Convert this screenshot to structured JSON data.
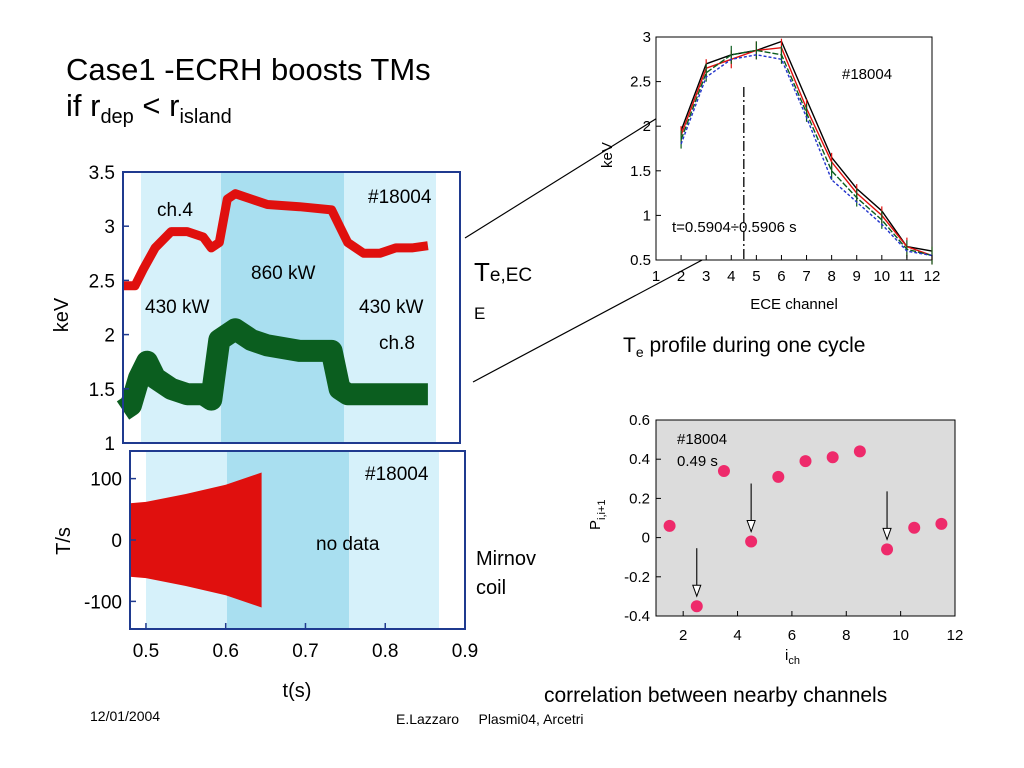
{
  "slide": {
    "title_line1": "Case1 -ECRH boosts TMs",
    "title_line2_prefix": "if r",
    "title_line2_sub1": "dep",
    "title_line2_mid": " < r",
    "title_line2_sub2": "island",
    "te_label_main": "T",
    "te_label_sub": "e,EC",
    "te_label_tail": "E",
    "mirnov_line1": "Mirnov",
    "mirnov_line2": "coil",
    "te_caption_prefix": "T",
    "te_caption_sub": "e",
    "te_caption_rest": " profile during one cycle",
    "corr_caption": "correlation between nearby channels",
    "footer_date": "12/01/2004",
    "footer_author": "E.Lazzaro     Plasmi04, Arcetri"
  },
  "colors": {
    "red": "#e0100e",
    "green": "#0b5e1f",
    "cyan_band": "#a9dff0",
    "cyan_light": "#d6f1fa",
    "pink": "#ee2a6b",
    "axis_blue": "#1f3a8f",
    "gray_bg": "#dcdcdc"
  },
  "chart_data": [
    {
      "type": "line",
      "ylabel": "keV",
      "ylim": [
        1,
        3.5
      ],
      "xlim": [
        0.48,
        0.9
      ],
      "yticks": [
        "1",
        "1.5",
        "2",
        "2.5",
        "3",
        "3.5"
      ],
      "annotation_shot": "#18004",
      "annotations": [
        "ch.4",
        "860 kW",
        "430 kW",
        "430 kW",
        "ch.8"
      ],
      "ecrh_phases": [
        {
          "from": 0.49,
          "to": 0.59,
          "power": "430 kW"
        },
        {
          "from": 0.59,
          "to": 0.745,
          "power": "860 kW"
        },
        {
          "from": 0.745,
          "to": 0.86,
          "power": "430 kW"
        }
      ],
      "series": [
        {
          "name": "ch.4",
          "color": "red",
          "x": [
            0.48,
            0.495,
            0.505,
            0.52,
            0.54,
            0.56,
            0.58,
            0.59,
            0.6,
            0.61,
            0.62,
            0.64,
            0.66,
            0.7,
            0.74,
            0.75,
            0.76,
            0.78,
            0.8,
            0.82,
            0.84,
            0.86
          ],
          "y": [
            2.45,
            2.45,
            2.6,
            2.8,
            2.95,
            2.95,
            2.9,
            2.8,
            2.85,
            3.25,
            3.3,
            3.25,
            3.2,
            3.18,
            3.15,
            3.0,
            2.85,
            2.75,
            2.75,
            2.8,
            2.8,
            2.82
          ]
        },
        {
          "name": "ch.8",
          "color": "green",
          "x": [
            0.48,
            0.49,
            0.5,
            0.51,
            0.52,
            0.54,
            0.56,
            0.58,
            0.59,
            0.6,
            0.62,
            0.64,
            0.66,
            0.7,
            0.74,
            0.75,
            0.76,
            0.78,
            0.8,
            0.82,
            0.84,
            0.86
          ],
          "y": [
            1.3,
            1.35,
            1.6,
            1.75,
            1.6,
            1.5,
            1.45,
            1.45,
            1.4,
            1.95,
            2.05,
            1.95,
            1.9,
            1.85,
            1.85,
            1.5,
            1.45,
            1.45,
            1.45,
            1.45,
            1.45,
            1.45
          ]
        }
      ]
    },
    {
      "type": "area",
      "ylabel": "T/s",
      "xlabel": "t(s)",
      "xlim": [
        0.48,
        0.9
      ],
      "ylim": [
        -145,
        145
      ],
      "xticks": [
        "0.5",
        "0.6",
        "0.7",
        "0.8",
        "0.9"
      ],
      "yticks": [
        "-100",
        "0",
        "100"
      ],
      "annotation_shot": "#18004",
      "annotation_nodata": "no data",
      "envelope": {
        "color": "red",
        "x": [
          0.48,
          0.5,
          0.55,
          0.6,
          0.645
        ],
        "y_max": [
          60,
          62,
          75,
          90,
          110
        ],
        "y_min": [
          -60,
          -62,
          -75,
          -90,
          -110
        ]
      }
    },
    {
      "type": "line",
      "xlabel": "ECE channel",
      "ylabel": "keV",
      "xlim": [
        1,
        12
      ],
      "ylim": [
        0.5,
        3
      ],
      "xticks": [
        "1",
        "2",
        "3",
        "4",
        "5",
        "6",
        "7",
        "8",
        "9",
        "10",
        "11",
        "12"
      ],
      "yticks": [
        "0.5",
        "1",
        "1.5",
        "2",
        "2.5",
        "3"
      ],
      "annotation_shot": "#18004",
      "annotation_time": "t=0.5904÷0.5906 s",
      "series": [
        {
          "color": "black",
          "x": [
            2,
            3,
            4,
            5,
            6,
            7,
            8,
            9,
            10,
            11,
            12
          ],
          "y": [
            1.95,
            2.7,
            2.8,
            2.85,
            2.95,
            2.3,
            1.65,
            1.3,
            1.05,
            0.65,
            0.6
          ]
        },
        {
          "color": "red",
          "x": [
            2,
            3,
            4,
            5,
            6,
            7,
            8,
            9,
            10,
            11,
            12
          ],
          "y": [
            1.9,
            2.65,
            2.75,
            2.85,
            2.88,
            2.2,
            1.6,
            1.25,
            1.0,
            0.65,
            0.55
          ]
        },
        {
          "color": "green",
          "x": [
            2,
            3,
            4,
            5,
            6,
            7,
            8,
            9,
            10,
            11,
            12
          ],
          "y": [
            1.85,
            2.6,
            2.8,
            2.85,
            2.8,
            2.15,
            1.5,
            1.2,
            0.95,
            0.62,
            0.55
          ]
        },
        {
          "color": "blue",
          "x": [
            2,
            3,
            4,
            5,
            6,
            7,
            8,
            9,
            10,
            11,
            12
          ],
          "y": [
            1.8,
            2.55,
            2.75,
            2.8,
            2.75,
            2.1,
            1.4,
            1.15,
            0.9,
            0.6,
            0.55
          ]
        }
      ],
      "deposition_channel": 4.5
    },
    {
      "type": "scatter",
      "xlabel_main": "i",
      "xlabel_sub": "ch",
      "ylabel_main": "P",
      "ylabel_sub": "i,i+1",
      "xlim": [
        1,
        12
      ],
      "ylim": [
        -0.4,
        0.6
      ],
      "xticks": [
        "2",
        "4",
        "6",
        "8",
        "10",
        "12"
      ],
      "yticks": [
        "-0.4",
        "-0.2",
        "0",
        "0.2",
        "0.4",
        "0.6"
      ],
      "annotation_shot": "#18004",
      "annotation_time": "0.49 s",
      "x": [
        1.5,
        2.5,
        3.5,
        4.5,
        5.5,
        6.5,
        7.5,
        8.5,
        9.5,
        10.5,
        11.5
      ],
      "y": [
        0.06,
        -0.35,
        0.34,
        -0.02,
        0.31,
        0.39,
        0.41,
        0.44,
        -0.06,
        0.05,
        0.07
      ],
      "arrow_points": [
        1,
        3,
        8
      ]
    }
  ]
}
